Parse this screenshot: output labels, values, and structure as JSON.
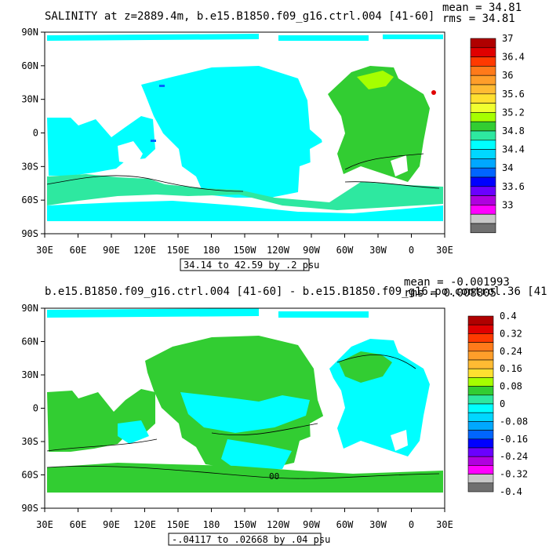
{
  "chart_data": [
    {
      "type": "heatmap",
      "title": "SALINITY at z=2889.4m, b.e15.B1850.f09_g16.ctrl.004 [41-60]",
      "stats": {
        "mean": "mean = 34.81",
        "rms": "rms = 34.81"
      },
      "subtitle_box": "34.14 to 42.59 by .2 psu",
      "xticks": [
        "30E",
        "60E",
        "90E",
        "120E",
        "150E",
        "180",
        "150W",
        "120W",
        "90W",
        "60W",
        "30W",
        "0",
        "30E"
      ],
      "yticks": [
        "90N",
        "60N",
        "30N",
        "0",
        "30S",
        "60S",
        "90S"
      ],
      "colorbar_labels": [
        "37",
        "36.4",
        "36",
        "35.6",
        "35.2",
        "34.8",
        "34.4",
        "34",
        "33.6",
        "33"
      ],
      "colorbar_colors": [
        "#b00000",
        "#e00000",
        "#ff3a00",
        "#ff7a1a",
        "#ff9e2a",
        "#ffbb33",
        "#ffe030",
        "#f0ff30",
        "#a6ff00",
        "#32cd32",
        "#2ee8a0",
        "#00ffff",
        "#00d7ff",
        "#00a8ff",
        "#0065ff",
        "#0000ff",
        "#6a00ff",
        "#b000e0",
        "#ff00ff",
        "#c8c8c8",
        "#707070"
      ]
    },
    {
      "type": "heatmap",
      "title": "b.e15.B1850.f09_g16.ctrl.004 [41-60] - b.e15.B1850.f09_g16.po.control.36 [41",
      "stats": {
        "mean": "mean = -0.001993",
        "rms": "rms = 0.008805"
      },
      "subtitle_box": "-.04117 to .02668 by .04 psu",
      "contour_label": "00",
      "xticks": [
        "30E",
        "60E",
        "90E",
        "120E",
        "150E",
        "180",
        "150W",
        "120W",
        "90W",
        "60W",
        "30W",
        "0",
        "30E"
      ],
      "yticks": [
        "90N",
        "60N",
        "30N",
        "0",
        "30S",
        "60S",
        "90S"
      ],
      "colorbar_labels": [
        "0.4",
        "0.32",
        "0.24",
        "0.16",
        "0.08",
        "0",
        "-0.08",
        "-0.16",
        "-0.24",
        "-0.32",
        "-0.4"
      ],
      "colorbar_colors": [
        "#b00000",
        "#e00000",
        "#ff3a00",
        "#ff7a1a",
        "#ff9e2a",
        "#ffbb33",
        "#ffe030",
        "#a6ff00",
        "#32cd32",
        "#2ee8a0",
        "#00ffff",
        "#00d7ff",
        "#00a8ff",
        "#0065ff",
        "#0000ff",
        "#6a00ff",
        "#b000e0",
        "#ff00ff",
        "#c8c8c8",
        "#707070"
      ]
    }
  ]
}
